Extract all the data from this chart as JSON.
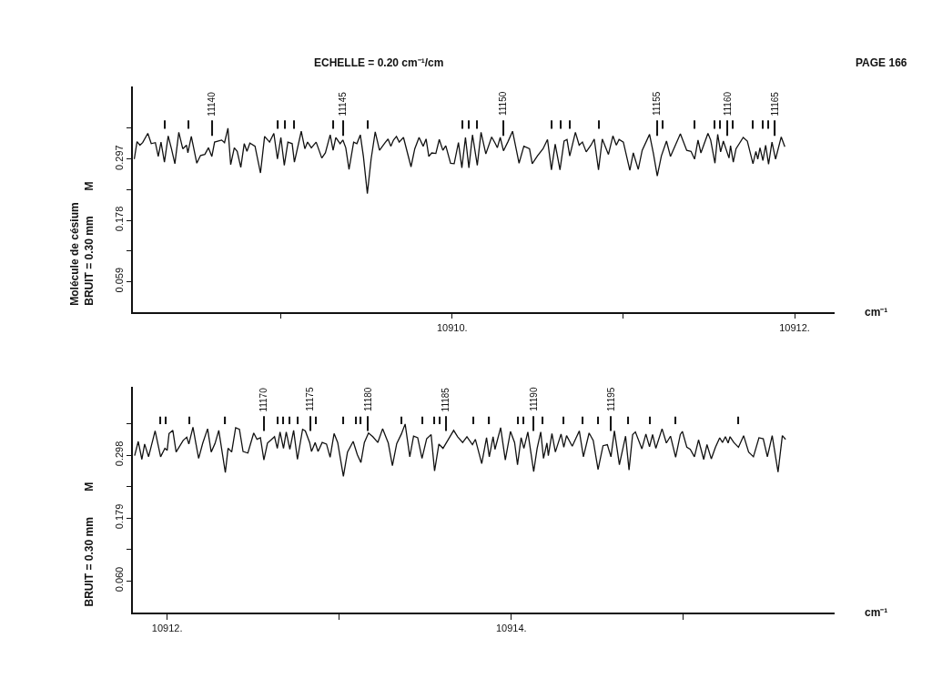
{
  "chart_data": [
    {
      "type": "line",
      "title": "ECHELLE = 0.20 cm⁻¹/cm",
      "ylabel": "Molécule de césium\nBRUIT = 0.30 mm",
      "xlabel": "cm⁻¹",
      "annotations": [
        "PAGE 166",
        "M",
        {
          "text": "11140",
          "x": 10908.597,
          "y": 0.372
        },
        {
          "text": "11145",
          "x": 10909.362,
          "y": 0.372
        },
        {
          "text": "11150",
          "x": 10910.3,
          "y": 0.372
        },
        {
          "text": "11155",
          "x": 10911.198,
          "y": 0.372
        },
        {
          "text": "11160",
          "x": 10911.609,
          "y": 0.372
        },
        {
          "text": "11165",
          "x": 10911.886,
          "y": 0.372
        }
      ],
      "xlim": [
        10908.136,
        10912.235
      ],
      "ylim": [
        0,
        0.438
      ],
      "xticks": [
        {
          "value": 10909,
          "label": null
        },
        {
          "value": 10910,
          "label": "10910."
        },
        {
          "value": 10911,
          "label": null
        },
        {
          "value": 10912,
          "label": "10912."
        }
      ],
      "yticks": [
        0.059,
        {
          "value": 0.119,
          "label": null
        },
        0.178,
        {
          "value": 0.238,
          "label": null
        },
        0.297,
        {
          "value": 0.357,
          "label": null
        }
      ],
      "series": [
        {
          "color": "#111111",
          "x": [
            10908.144,
            10908.16,
            10908.177,
            10908.193,
            10908.223,
            10908.243,
            10908.267,
            10908.284,
            10908.3,
            10908.32,
            10908.342,
            10908.361,
            10908.381,
            10908.404,
            10908.427,
            10908.449,
            10908.457,
            10908.477,
            10908.509,
            10908.531,
            10908.556,
            10908.577,
            10908.597,
            10908.613,
            10908.654,
            10908.671,
            10908.691,
            10908.707,
            10908.728,
            10908.745,
            10908.766,
            10908.786,
            10908.802,
            10908.819,
            10908.849,
            10908.881,
            10908.905,
            10908.934,
            10908.959,
            10908.98,
            10909.0,
            10909.02,
            10909.041,
            10909.066,
            10909.079,
            10909.119,
            10909.14,
            10909.156,
            10909.178,
            10909.206,
            10909.239,
            10909.26,
            10909.288,
            10909.305,
            10909.321,
            10909.346,
            10909.362,
            10909.379,
            10909.398,
            10909.425,
            10909.444,
            10909.464,
            10909.482,
            10909.505,
            10909.527,
            10909.551,
            10909.576,
            10909.609,
            10909.626,
            10909.642,
            10909.658,
            10909.675,
            10909.691,
            10909.716,
            10909.76,
            10909.782,
            10909.807,
            10909.831,
            10909.848,
            10909.864,
            10909.881,
            10909.905,
            10909.925,
            10909.946,
            10909.963,
            10909.991,
            10910.012,
            10910.037,
            10910.057,
            10910.078,
            10910.098,
            10910.119,
            10910.147,
            10910.169,
            10910.197,
            10910.231,
            10910.251,
            10910.264,
            10910.281,
            10910.3,
            10910.325,
            10910.353,
            10910.391,
            10910.419,
            10910.452,
            10910.468,
            10910.498,
            10910.531,
            10910.557,
            10910.58,
            10910.602,
            10910.63,
            10910.654,
            10910.671,
            10910.687,
            10910.72,
            10910.742,
            10910.761,
            10910.783,
            10910.811,
            10910.83,
            10910.855,
            10910.877,
            10910.913,
            10910.939,
            10910.959,
            10910.975,
            10911.0,
            10911.038,
            10911.058,
            10911.087,
            10911.11,
            10911.153,
            10911.176,
            10911.198,
            10911.222,
            10911.252,
            10911.275,
            10911.333,
            10911.37,
            10911.395,
            10911.416,
            10911.436,
            10911.453,
            10911.494,
            10911.51,
            10911.535,
            10911.551,
            10911.568,
            10911.584,
            10911.617,
            10911.626,
            10911.642,
            10911.658,
            10911.7,
            10911.724,
            10911.757,
            10911.774,
            10911.785,
            10911.798,
            10911.815,
            10911.831,
            10911.848,
            10911.868,
            10911.889,
            10911.922,
            10911.943
          ],
          "values": [
            0.297,
            0.331,
            0.324,
            0.329,
            0.347,
            0.327,
            0.329,
            0.302,
            0.33,
            0.291,
            0.342,
            0.317,
            0.288,
            0.349,
            0.317,
            0.324,
            0.309,
            0.341,
            0.289,
            0.304,
            0.306,
            0.319,
            0.302,
            0.33,
            0.334,
            0.329,
            0.357,
            0.286,
            0.319,
            0.312,
            0.281,
            0.327,
            0.312,
            0.328,
            0.322,
            0.27,
            0.341,
            0.33,
            0.347,
            0.297,
            0.339,
            0.285,
            0.33,
            0.327,
            0.291,
            0.351,
            0.317,
            0.33,
            0.319,
            0.33,
            0.299,
            0.309,
            0.344,
            0.314,
            0.339,
            0.327,
            0.334,
            0.319,
            0.277,
            0.33,
            0.327,
            0.344,
            0.302,
            0.23,
            0.297,
            0.35,
            0.314,
            0.329,
            0.336,
            0.322,
            0.334,
            0.341,
            0.33,
            0.339,
            0.282,
            0.317,
            0.339,
            0.322,
            0.336,
            0.302,
            0.309,
            0.308,
            0.335,
            0.314,
            0.323,
            0.289,
            0.288,
            0.329,
            0.28,
            0.339,
            0.28,
            0.344,
            0.285,
            0.349,
            0.307,
            0.34,
            0.328,
            0.319,
            0.339,
            0.313,
            0.33,
            0.351,
            0.289,
            0.322,
            0.317,
            0.288,
            0.303,
            0.317,
            0.335,
            0.276,
            0.326,
            0.276,
            0.332,
            0.335,
            0.303,
            0.349,
            0.324,
            0.33,
            0.311,
            0.324,
            0.336,
            0.276,
            0.336,
            0.306,
            0.342,
            0.324,
            0.335,
            0.33,
            0.275,
            0.309,
            0.277,
            0.314,
            0.345,
            0.307,
            0.264,
            0.303,
            0.332,
            0.302,
            0.346,
            0.314,
            0.312,
            0.297,
            0.334,
            0.309,
            0.347,
            0.334,
            0.289,
            0.345,
            0.311,
            0.332,
            0.299,
            0.323,
            0.291,
            0.317,
            0.339,
            0.332,
            0.288,
            0.312,
            0.297,
            0.319,
            0.294,
            0.324,
            0.287,
            0.33,
            0.297,
            0.34,
            0.321
          ]
        },
        {
          "type": "bar",
          "color": "#111111",
          "x": [
            10908.322,
            10908.46,
            10908.597,
            10908.984,
            10909.025,
            10909.079,
            10909.305,
            10909.362,
            10909.505,
            10910.062,
            10910.095,
            10910.147,
            10910.3,
            10910.58,
            10910.633,
            10910.687,
            10910.855,
            10911.198,
            10911.23,
            10911.416,
            10911.532,
            10911.565,
            10911.609,
            10911.639,
            10911.754,
            10911.812,
            10911.848,
            10911.886
          ],
          "values": [
            0.016,
            0.016,
            0.03,
            0.016,
            0.016,
            0.016,
            0.016,
            0.03,
            0.016,
            0.016,
            0.016,
            0.016,
            0.03,
            0.016,
            0.016,
            0.016,
            0.016,
            0.03,
            0.016,
            0.016,
            0.016,
            0.016,
            0.03,
            0.016,
            0.016,
            0.016,
            0.016,
            0.03
          ],
          "base": [
            0.356,
            0.356,
            0.342,
            0.356,
            0.356,
            0.356,
            0.356,
            0.342,
            0.356,
            0.356,
            0.356,
            0.356,
            0.342,
            0.356,
            0.356,
            0.356,
            0.356,
            0.342,
            0.356,
            0.356,
            0.356,
            0.356,
            0.342,
            0.356,
            0.356,
            0.356,
            0.356,
            0.342
          ]
        }
      ]
    },
    {
      "type": "line",
      "ylabel": "BRUIT = 0.30 mm",
      "xlabel": "cm⁻¹",
      "annotations": [
        "M",
        {
          "text": "11170",
          "x": 10912.562,
          "y": 0.372
        },
        {
          "text": "11175",
          "x": 10912.833,
          "y": 0.372
        },
        {
          "text": "11180",
          "x": 10913.167,
          "y": 0.372
        },
        {
          "text": "11185",
          "x": 10913.619,
          "y": 0.372
        },
        {
          "text": "11190",
          "x": 10914.129,
          "y": 0.372
        },
        {
          "text": "11195",
          "x": 10914.579,
          "y": 0.372
        }
      ],
      "xlim": [
        10911.801,
        10915.88
      ],
      "ylim": [
        0,
        0.427
      ],
      "xticks": [
        {
          "value": 10912,
          "label": "10912."
        },
        {
          "value": 10913,
          "label": null
        },
        {
          "value": 10914,
          "label": "10914."
        },
        {
          "value": 10915,
          "label": null
        }
      ],
      "yticks": [
        {
          "value": 0.06,
          "label": "0.060"
        },
        {
          "value": 0.119,
          "label": null
        },
        0.179,
        {
          "value": 0.238,
          "label": null
        },
        0.298,
        {
          "value": 0.357,
          "label": null
        }
      ],
      "series": [
        {
          "color": "#111111",
          "x": [
            10911.811,
            10911.832,
            10911.853,
            10911.869,
            10911.892,
            10911.93,
            10911.962,
            10911.987,
            10912.0,
            10912.011,
            10912.033,
            10912.052,
            10912.093,
            10912.114,
            10912.126,
            10912.15,
            10912.167,
            10912.183,
            10912.207,
            10912.235,
            10912.256,
            10912.278,
            10912.3,
            10912.338,
            10912.354,
            10912.375,
            10912.398,
            10912.42,
            10912.441,
            10912.469,
            10912.503,
            10912.522,
            10912.542,
            10912.562,
            10912.583,
            10912.607,
            10912.624,
            10912.64,
            10912.656,
            10912.676,
            10912.692,
            10912.713,
            10912.735,
            10912.757,
            10912.787,
            10912.803,
            10912.828,
            10912.839,
            10912.86,
            10912.877,
            10912.901,
            10912.926,
            10912.947,
            10912.97,
            10912.991,
            10913.024,
            10913.048,
            10913.081,
            10913.105,
            10913.126,
            10913.146,
            10913.17,
            10913.195,
            10913.224,
            10913.252,
            10913.285,
            10913.309,
            10913.334,
            10913.361,
            10913.383,
            10913.41,
            10913.432,
            10913.456,
            10913.481,
            10913.508,
            10913.534,
            10913.554,
            10913.579,
            10913.603,
            10913.636,
            10913.665,
            10913.688,
            10913.717,
            10913.742,
            10913.774,
            10913.791,
            10913.828,
            10913.856,
            10913.872,
            10913.894,
            10913.905,
            10913.938,
            10913.965,
            10913.995,
            10914.019,
            10914.036,
            10914.057,
            10914.073,
            10914.096,
            10914.13,
            10914.15,
            10914.171,
            10914.187,
            10914.207,
            10914.215,
            10914.236,
            10914.256,
            10914.289,
            10914.305,
            10914.321,
            10914.354,
            10914.395,
            10914.419,
            10914.452,
            10914.476,
            10914.504,
            10914.533,
            10914.558,
            10914.579,
            10914.599,
            10914.628,
            10914.664,
            10914.684,
            10914.705,
            10914.721,
            10914.759,
            10914.782,
            10914.803,
            10914.821,
            10914.84,
            10914.876,
            10914.901,
            10914.925,
            10914.955,
            10914.982,
            10914.994,
            10915.02,
            10915.04,
            10915.064,
            10915.088,
            10915.118,
            10915.137,
            10915.162,
            10915.186,
            10915.211,
            10915.227,
            10915.244,
            10915.26,
            10915.271,
            10915.293,
            10915.32,
            10915.35,
            10915.379,
            10915.407,
            10915.439,
            10915.464,
            10915.488,
            10915.516,
            10915.55,
            10915.575,
            10915.594
          ],
          "values": [
            0.297,
            0.324,
            0.29,
            0.319,
            0.295,
            0.344,
            0.295,
            0.311,
            0.307,
            0.339,
            0.345,
            0.304,
            0.326,
            0.332,
            0.319,
            0.351,
            0.32,
            0.292,
            0.321,
            0.348,
            0.304,
            0.32,
            0.345,
            0.265,
            0.311,
            0.304,
            0.35,
            0.347,
            0.305,
            0.302,
            0.34,
            0.328,
            0.331,
            0.289,
            0.321,
            0.328,
            0.333,
            0.311,
            0.342,
            0.311,
            0.342,
            0.309,
            0.345,
            0.29,
            0.347,
            0.344,
            0.322,
            0.305,
            0.322,
            0.305,
            0.322,
            0.319,
            0.294,
            0.339,
            0.322,
            0.258,
            0.304,
            0.324,
            0.299,
            0.284,
            0.322,
            0.34,
            0.333,
            0.322,
            0.348,
            0.321,
            0.278,
            0.32,
            0.338,
            0.357,
            0.295,
            0.334,
            0.331,
            0.292,
            0.329,
            0.337,
            0.268,
            0.319,
            0.311,
            0.329,
            0.345,
            0.333,
            0.322,
            0.333,
            0.318,
            0.328,
            0.282,
            0.331,
            0.295,
            0.333,
            0.309,
            0.35,
            0.289,
            0.343,
            0.322,
            0.28,
            0.331,
            0.311,
            0.342,
            0.267,
            0.311,
            0.342,
            0.292,
            0.321,
            0.297,
            0.339,
            0.304,
            0.338,
            0.313,
            0.335,
            0.315,
            0.344,
            0.295,
            0.34,
            0.326,
            0.271,
            0.316,
            0.318,
            0.295,
            0.344,
            0.28,
            0.334,
            0.27,
            0.337,
            0.342,
            0.31,
            0.338,
            0.314,
            0.337,
            0.311,
            0.348,
            0.321,
            0.334,
            0.294,
            0.337,
            0.343,
            0.313,
            0.309,
            0.295,
            0.327,
            0.29,
            0.318,
            0.291,
            0.313,
            0.331,
            0.322,
            0.333,
            0.321,
            0.333,
            0.322,
            0.313,
            0.335,
            0.304,
            0.295,
            0.331,
            0.329,
            0.295,
            0.335,
            0.266,
            0.335,
            0.328
          ]
        },
        {
          "type": "bar",
          "color": "#111111",
          "x": [
            10911.962,
            10911.992,
            10912.129,
            10912.338,
            10912.562,
            10912.64,
            10912.676,
            10912.713,
            10912.757,
            10912.833,
            10912.865,
            10913.024,
            10913.097,
            10913.126,
            10913.167,
            10913.361,
            10913.481,
            10913.554,
            10913.583,
            10913.619,
            10913.779,
            10913.872,
            10914.039,
            10914.068,
            10914.129,
            10914.183,
            10914.305,
            10914.416,
            10914.504,
            10914.579,
            10914.68,
            10914.803,
            10914.955,
            10915.317
          ],
          "values": [
            0.014,
            0.014,
            0.014,
            0.014,
            0.028,
            0.014,
            0.014,
            0.014,
            0.014,
            0.028,
            0.014,
            0.014,
            0.014,
            0.014,
            0.028,
            0.014,
            0.014,
            0.014,
            0.014,
            0.028,
            0.014,
            0.014,
            0.014,
            0.014,
            0.028,
            0.014,
            0.014,
            0.014,
            0.014,
            0.028,
            0.014,
            0.014,
            0.014,
            0.014
          ],
          "base": [
            0.357,
            0.357,
            0.357,
            0.357,
            0.344,
            0.357,
            0.357,
            0.357,
            0.357,
            0.344,
            0.357,
            0.357,
            0.357,
            0.357,
            0.344,
            0.357,
            0.357,
            0.357,
            0.357,
            0.344,
            0.357,
            0.357,
            0.357,
            0.357,
            0.344,
            0.357,
            0.357,
            0.357,
            0.357,
            0.344,
            0.357,
            0.357,
            0.357,
            0.357
          ]
        }
      ]
    }
  ]
}
